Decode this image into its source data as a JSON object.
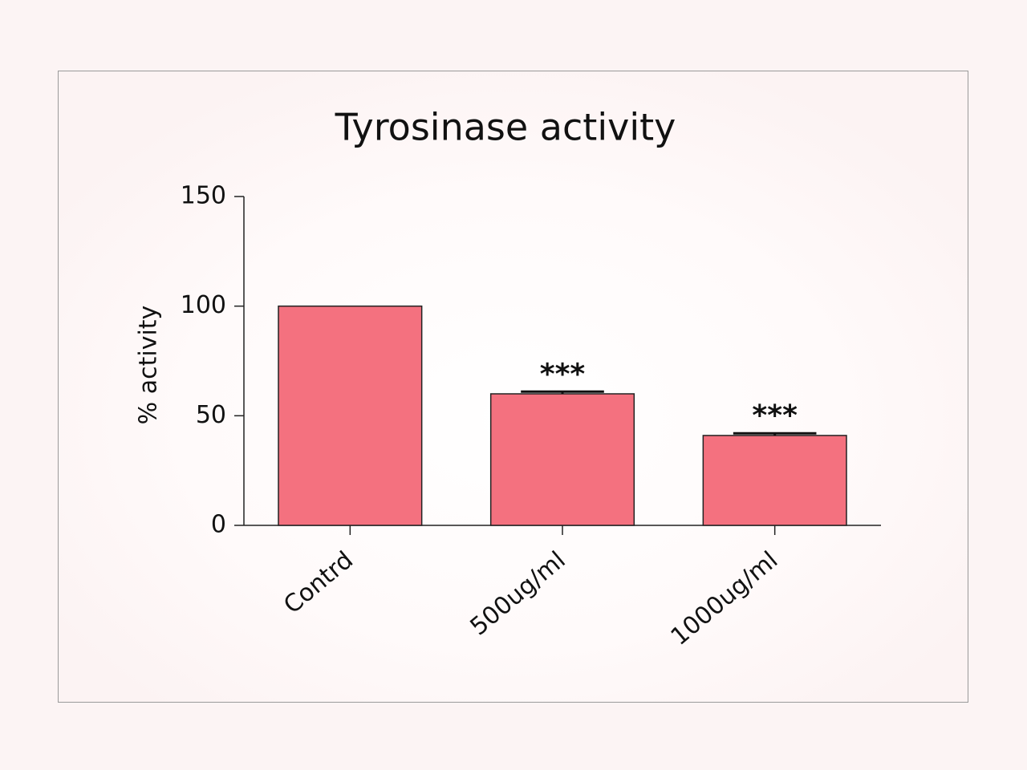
{
  "chart_data": {
    "type": "bar",
    "title": "Tyrosinase activity",
    "y_label": "% activity",
    "categories": [
      "Contrd",
      "500ug/ml",
      "1000ug/ml"
    ],
    "values": [
      100,
      60,
      41
    ],
    "errors": [
      0,
      1,
      1
    ],
    "significance": [
      null,
      "***",
      "***"
    ],
    "color": "#f4717f",
    "ylim": [
      0,
      150
    ],
    "yticks": [
      0,
      50,
      100,
      150
    ],
    "grid": false
  }
}
